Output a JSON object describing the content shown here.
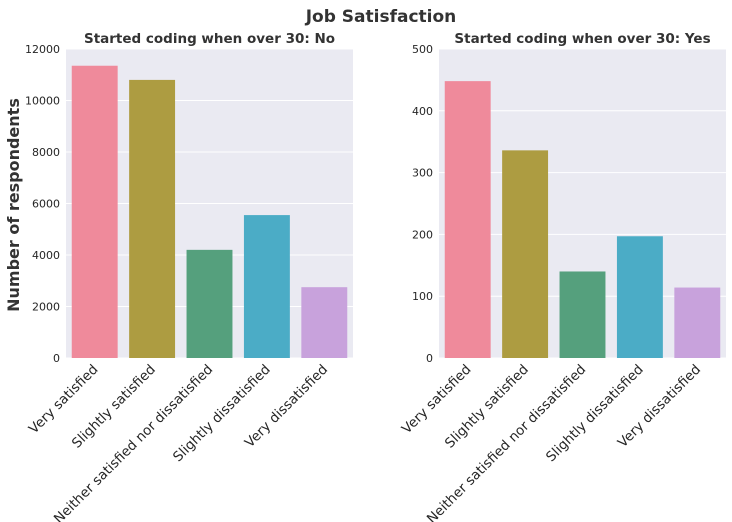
{
  "figure": {
    "title": "Job Satisfaction",
    "ylabel": "Number of respondents"
  },
  "colors": [
    "#ef8a9b",
    "#ad9c41",
    "#55a07d",
    "#4bacc6",
    "#c8a2dc"
  ],
  "chart_data": [
    {
      "type": "bar",
      "title": "Started coding when over 30: No",
      "categories": [
        "Very satisfied",
        "Slightly satisfied",
        "Neither satisfied nor dissatisfied",
        "Slightly dissatisfied",
        "Very dissatisfied"
      ],
      "values": [
        11350,
        10800,
        4200,
        5550,
        2750
      ],
      "ylim": [
        0,
        12000
      ],
      "yticks": [
        0,
        2000,
        4000,
        6000,
        8000,
        10000,
        12000
      ],
      "ylabel": "Number of respondents",
      "grid": true
    },
    {
      "type": "bar",
      "title": "Started coding when over 30: Yes",
      "categories": [
        "Very satisfied",
        "Slightly satisfied",
        "Neither satisfied nor dissatisfied",
        "Slightly dissatisfied",
        "Very dissatisfied"
      ],
      "values": [
        448,
        336,
        140,
        197,
        114
      ],
      "ylim": [
        0,
        500
      ],
      "yticks": [
        0,
        100,
        200,
        300,
        400,
        500
      ],
      "ylabel": "",
      "grid": true
    }
  ]
}
